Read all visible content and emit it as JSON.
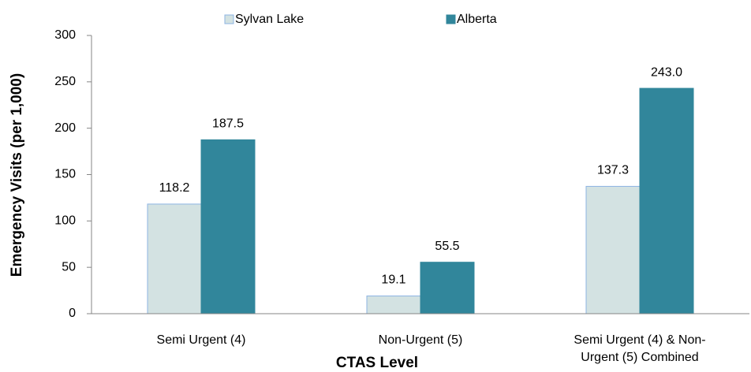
{
  "chart_data": {
    "type": "bar",
    "x_label": "CTAS Level",
    "y_label": "Emergency Visits (per 1,000)",
    "categories": [
      "Semi Urgent (4)",
      "Non-Urgent (5)",
      "Semi Urgent (4) & Non-Urgent (5) Combined"
    ],
    "series": [
      {
        "name": "Sylvan Lake",
        "color": "#d3e2e2",
        "border": "#8eb4e3",
        "values": [
          118.2,
          19.1,
          137.3
        ],
        "value_labels": [
          "118.2",
          "19.1",
          "137.3"
        ]
      },
      {
        "name": "Alberta",
        "color": "#31869b",
        "border": "#31869b",
        "values": [
          187.5,
          55.5,
          243.0
        ],
        "value_labels": [
          "187.5",
          "55.5",
          "243.0"
        ]
      }
    ],
    "ylim": [
      0,
      300
    ],
    "yticks": [
      0,
      50,
      100,
      150,
      200,
      250,
      300
    ],
    "grid": false
  }
}
